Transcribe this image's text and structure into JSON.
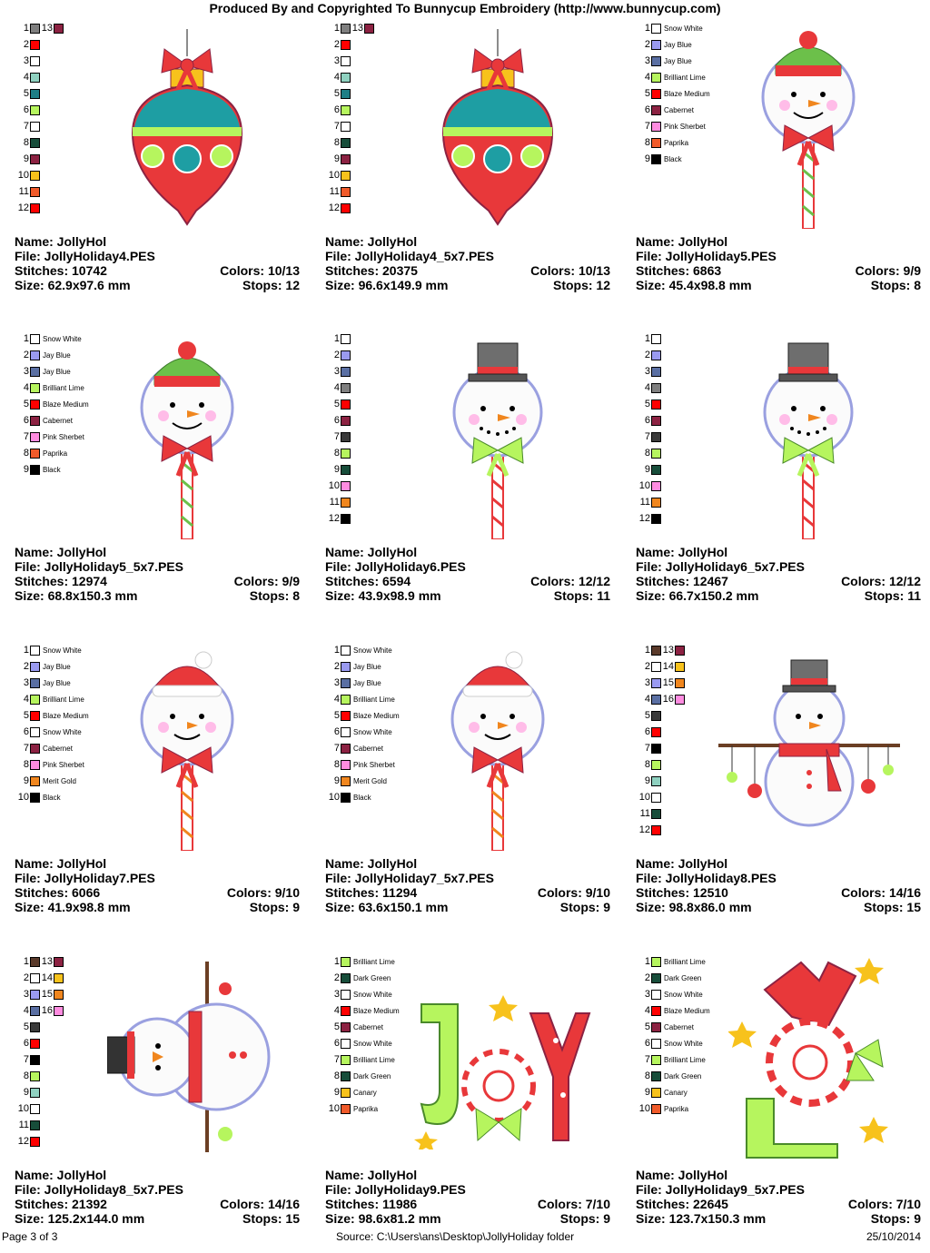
{
  "header": {
    "title": "Produced By and Copyrighted To Bunnycup Embroidery (http://www.bunnycup.com)"
  },
  "labels": {
    "name": "Name:",
    "file": "File:",
    "stitches": "Stitches:",
    "size": "Size:",
    "colors": "Colors:",
    "stops": "Stops:"
  },
  "designs": [
    {
      "name": "JollyHol",
      "file": "JollyHoliday4.PES",
      "stitches": "10742",
      "size": "62.9x97.6 mm",
      "colors": "10/13",
      "stops": "12",
      "motif": "ornament-icon",
      "swatches": [
        {
          "n": "1",
          "color": "#7f7f7f",
          "label": ""
        },
        {
          "n": "2",
          "color": "#ff0000",
          "label": ""
        },
        {
          "n": "3",
          "color": "#ffffff",
          "label": ""
        },
        {
          "n": "4",
          "color": "#8fd1c0",
          "label": ""
        },
        {
          "n": "5",
          "color": "#1e7f86",
          "label": ""
        },
        {
          "n": "6",
          "color": "#b6f55e",
          "label": ""
        },
        {
          "n": "7",
          "color": "#ffffff",
          "label": ""
        },
        {
          "n": "8",
          "color": "#174d3a",
          "label": ""
        },
        {
          "n": "9",
          "color": "#8c2242",
          "label": ""
        },
        {
          "n": "10",
          "color": "#f7c21c",
          "label": ""
        },
        {
          "n": "11",
          "color": "#f05a2a",
          "label": ""
        },
        {
          "n": "12",
          "color": "#ff0000",
          "label": ""
        },
        {
          "n": "13",
          "color": "#8c2242",
          "label": ""
        }
      ]
    },
    {
      "name": "JollyHol",
      "file": "JollyHoliday4_5x7.PES",
      "stitches": "20375",
      "size": "96.6x149.9 mm",
      "colors": "10/13",
      "stops": "12",
      "motif": "ornament-icon",
      "swatches": [
        {
          "n": "1",
          "color": "#7f7f7f",
          "label": ""
        },
        {
          "n": "2",
          "color": "#ff0000",
          "label": ""
        },
        {
          "n": "3",
          "color": "#ffffff",
          "label": ""
        },
        {
          "n": "4",
          "color": "#8fd1c0",
          "label": ""
        },
        {
          "n": "5",
          "color": "#1e7f86",
          "label": ""
        },
        {
          "n": "6",
          "color": "#b6f55e",
          "label": ""
        },
        {
          "n": "7",
          "color": "#ffffff",
          "label": ""
        },
        {
          "n": "8",
          "color": "#174d3a",
          "label": ""
        },
        {
          "n": "9",
          "color": "#8c2242",
          "label": ""
        },
        {
          "n": "10",
          "color": "#f7c21c",
          "label": ""
        },
        {
          "n": "11",
          "color": "#f05a2a",
          "label": ""
        },
        {
          "n": "12",
          "color": "#ff0000",
          "label": ""
        },
        {
          "n": "13",
          "color": "#8c2242",
          "label": ""
        }
      ]
    },
    {
      "name": "JollyHol",
      "file": "JollyHoliday5.PES",
      "stitches": "6863",
      "size": "45.4x98.8 mm",
      "colors": "9/9",
      "stops": "8",
      "motif": "snowman-pop-beanie-icon",
      "swatches": [
        {
          "n": "1",
          "color": "#ffffff",
          "label": "Snow White"
        },
        {
          "n": "2",
          "color": "#9a9af0",
          "label": "Jay Blue"
        },
        {
          "n": "3",
          "color": "#5a6fa3",
          "label": "Jay Blue"
        },
        {
          "n": "4",
          "color": "#b6f55e",
          "label": "Brilliant Lime"
        },
        {
          "n": "5",
          "color": "#ff0000",
          "label": "Blaze Medium"
        },
        {
          "n": "6",
          "color": "#8c2242",
          "label": "Cabernet"
        },
        {
          "n": "7",
          "color": "#ff8ce0",
          "label": "Pink Sherbet"
        },
        {
          "n": "8",
          "color": "#f05a2a",
          "label": "Paprika"
        },
        {
          "n": "9",
          "color": "#000000",
          "label": "Black"
        }
      ]
    },
    {
      "name": "JollyHol",
      "file": "JollyHoliday5_5x7.PES",
      "stitches": "12974",
      "size": "68.8x150.3 mm",
      "colors": "9/9",
      "stops": "8",
      "motif": "snowman-pop-beanie-icon",
      "swatches": [
        {
          "n": "1",
          "color": "#ffffff",
          "label": "Snow White"
        },
        {
          "n": "2",
          "color": "#9a9af0",
          "label": "Jay Blue"
        },
        {
          "n": "3",
          "color": "#5a6fa3",
          "label": "Jay Blue"
        },
        {
          "n": "4",
          "color": "#b6f55e",
          "label": "Brilliant Lime"
        },
        {
          "n": "5",
          "color": "#ff0000",
          "label": "Blaze Medium"
        },
        {
          "n": "6",
          "color": "#8c2242",
          "label": "Cabernet"
        },
        {
          "n": "7",
          "color": "#ff8ce0",
          "label": "Pink Sherbet"
        },
        {
          "n": "8",
          "color": "#f05a2a",
          "label": "Paprika"
        },
        {
          "n": "9",
          "color": "#000000",
          "label": "Black"
        }
      ]
    },
    {
      "name": "JollyHol",
      "file": "JollyHoliday6.PES",
      "stitches": "6594",
      "size": "43.9x98.9 mm",
      "colors": "12/12",
      "stops": "11",
      "motif": "snowman-pop-tophat-icon",
      "swatches": [
        {
          "n": "1",
          "color": "#ffffff",
          "label": ""
        },
        {
          "n": "2",
          "color": "#9a9af0",
          "label": ""
        },
        {
          "n": "3",
          "color": "#5a6fa3",
          "label": ""
        },
        {
          "n": "4",
          "color": "#7f7f7f",
          "label": ""
        },
        {
          "n": "5",
          "color": "#ff0000",
          "label": ""
        },
        {
          "n": "6",
          "color": "#8c2242",
          "label": ""
        },
        {
          "n": "7",
          "color": "#3a3a3a",
          "label": ""
        },
        {
          "n": "8",
          "color": "#b6f55e",
          "label": ""
        },
        {
          "n": "9",
          "color": "#174d3a",
          "label": ""
        },
        {
          "n": "10",
          "color": "#ff8ce0",
          "label": ""
        },
        {
          "n": "11",
          "color": "#f0861e",
          "label": ""
        },
        {
          "n": "12",
          "color": "#000000",
          "label": ""
        }
      ]
    },
    {
      "name": "JollyHol",
      "file": "JollyHoliday6_5x7.PES",
      "stitches": "12467",
      "size": "66.7x150.2 mm",
      "colors": "12/12",
      "stops": "11",
      "motif": "snowman-pop-tophat-icon",
      "swatches": [
        {
          "n": "1",
          "color": "#ffffff",
          "label": ""
        },
        {
          "n": "2",
          "color": "#9a9af0",
          "label": ""
        },
        {
          "n": "3",
          "color": "#5a6fa3",
          "label": ""
        },
        {
          "n": "4",
          "color": "#7f7f7f",
          "label": ""
        },
        {
          "n": "5",
          "color": "#ff0000",
          "label": ""
        },
        {
          "n": "6",
          "color": "#8c2242",
          "label": ""
        },
        {
          "n": "7",
          "color": "#3a3a3a",
          "label": ""
        },
        {
          "n": "8",
          "color": "#b6f55e",
          "label": ""
        },
        {
          "n": "9",
          "color": "#174d3a",
          "label": ""
        },
        {
          "n": "10",
          "color": "#ff8ce0",
          "label": ""
        },
        {
          "n": "11",
          "color": "#f0861e",
          "label": ""
        },
        {
          "n": "12",
          "color": "#000000",
          "label": ""
        }
      ]
    },
    {
      "name": "JollyHol",
      "file": "JollyHoliday7.PES",
      "stitches": "6066",
      "size": "41.9x98.8 mm",
      "colors": "9/10",
      "stops": "9",
      "motif": "snowman-pop-santa-hat-icon",
      "swatches": [
        {
          "n": "1",
          "color": "#ffffff",
          "label": "Snow White"
        },
        {
          "n": "2",
          "color": "#9a9af0",
          "label": "Jay Blue"
        },
        {
          "n": "3",
          "color": "#5a6fa3",
          "label": "Jay Blue"
        },
        {
          "n": "4",
          "color": "#b6f55e",
          "label": "Brilliant Lime"
        },
        {
          "n": "5",
          "color": "#ff0000",
          "label": "Blaze Medium"
        },
        {
          "n": "6",
          "color": "#ffffff",
          "label": "Snow White"
        },
        {
          "n": "7",
          "color": "#8c2242",
          "label": "Cabernet"
        },
        {
          "n": "8",
          "color": "#ff8ce0",
          "label": "Pink Sherbet"
        },
        {
          "n": "9",
          "color": "#f0861e",
          "label": "Merit Gold"
        },
        {
          "n": "10",
          "color": "#000000",
          "label": "Black"
        }
      ]
    },
    {
      "name": "JollyHol",
      "file": "JollyHoliday7_5x7.PES",
      "stitches": "11294",
      "size": "63.6x150.1 mm",
      "colors": "9/10",
      "stops": "9",
      "motif": "snowman-pop-santa-hat-icon",
      "swatches": [
        {
          "n": "1",
          "color": "#ffffff",
          "label": "Snow White"
        },
        {
          "n": "2",
          "color": "#9a9af0",
          "label": "Jay Blue"
        },
        {
          "n": "3",
          "color": "#5a6fa3",
          "label": "Jay Blue"
        },
        {
          "n": "4",
          "color": "#b6f55e",
          "label": "Brilliant Lime"
        },
        {
          "n": "5",
          "color": "#ff0000",
          "label": "Blaze Medium"
        },
        {
          "n": "6",
          "color": "#ffffff",
          "label": "Snow White"
        },
        {
          "n": "7",
          "color": "#8c2242",
          "label": "Cabernet"
        },
        {
          "n": "8",
          "color": "#ff8ce0",
          "label": "Pink Sherbet"
        },
        {
          "n": "9",
          "color": "#f0861e",
          "label": "Merit Gold"
        },
        {
          "n": "10",
          "color": "#000000",
          "label": "Black"
        }
      ]
    },
    {
      "name": "JollyHol",
      "file": "JollyHoliday8.PES",
      "stitches": "12510",
      "size": "98.8x86.0 mm",
      "colors": "14/16",
      "stops": "15",
      "motif": "snowman-branch-icon",
      "swatches": [
        {
          "n": "1",
          "color": "#5a3a2a",
          "label": ""
        },
        {
          "n": "2",
          "color": "#ffffff",
          "label": ""
        },
        {
          "n": "3",
          "color": "#9a9af0",
          "label": ""
        },
        {
          "n": "4",
          "color": "#5a6fa3",
          "label": ""
        },
        {
          "n": "5",
          "color": "#3a3a3a",
          "label": ""
        },
        {
          "n": "6",
          "color": "#ff0000",
          "label": ""
        },
        {
          "n": "7",
          "color": "#000000",
          "label": ""
        },
        {
          "n": "8",
          "color": "#b6f55e",
          "label": ""
        },
        {
          "n": "9",
          "color": "#8fd1c0",
          "label": ""
        },
        {
          "n": "10",
          "color": "#ffffff",
          "label": ""
        },
        {
          "n": "11",
          "color": "#174d3a",
          "label": ""
        },
        {
          "n": "12",
          "color": "#ff0000",
          "label": ""
        },
        {
          "n": "13",
          "color": "#8c2242",
          "label": ""
        },
        {
          "n": "14",
          "color": "#f7c21c",
          "label": ""
        },
        {
          "n": "15",
          "color": "#f0861e",
          "label": ""
        },
        {
          "n": "16",
          "color": "#ff8ce0",
          "label": ""
        }
      ]
    },
    {
      "name": "JollyHol",
      "file": "JollyHoliday8_5x7.PES",
      "stitches": "21392",
      "size": "125.2x144.0 mm",
      "colors": "14/16",
      "stops": "15",
      "motif": "snowman-sideways-icon",
      "swatches": [
        {
          "n": "1",
          "color": "#5a3a2a",
          "label": ""
        },
        {
          "n": "2",
          "color": "#ffffff",
          "label": ""
        },
        {
          "n": "3",
          "color": "#9a9af0",
          "label": ""
        },
        {
          "n": "4",
          "color": "#5a6fa3",
          "label": ""
        },
        {
          "n": "5",
          "color": "#3a3a3a",
          "label": ""
        },
        {
          "n": "6",
          "color": "#ff0000",
          "label": ""
        },
        {
          "n": "7",
          "color": "#000000",
          "label": ""
        },
        {
          "n": "8",
          "color": "#b6f55e",
          "label": ""
        },
        {
          "n": "9",
          "color": "#8fd1c0",
          "label": ""
        },
        {
          "n": "10",
          "color": "#ffffff",
          "label": ""
        },
        {
          "n": "11",
          "color": "#174d3a",
          "label": ""
        },
        {
          "n": "12",
          "color": "#ff0000",
          "label": ""
        },
        {
          "n": "13",
          "color": "#8c2242",
          "label": ""
        },
        {
          "n": "14",
          "color": "#f7c21c",
          "label": ""
        },
        {
          "n": "15",
          "color": "#f0861e",
          "label": ""
        },
        {
          "n": "16",
          "color": "#ff8ce0",
          "label": ""
        }
      ]
    },
    {
      "name": "JollyHol",
      "file": "JollyHoliday9.PES",
      "stitches": "11986",
      "size": "98.6x81.2 mm",
      "colors": "7/10",
      "stops": "9",
      "motif": "joy-letters-icon",
      "swatches": [
        {
          "n": "1",
          "color": "#b6f55e",
          "label": "Brilliant Lime"
        },
        {
          "n": "2",
          "color": "#174d3a",
          "label": "Dark Green"
        },
        {
          "n": "3",
          "color": "#ffffff",
          "label": "Snow White"
        },
        {
          "n": "4",
          "color": "#ff0000",
          "label": "Blaze Medium"
        },
        {
          "n": "5",
          "color": "#8c2242",
          "label": "Cabernet"
        },
        {
          "n": "6",
          "color": "#ffffff",
          "label": "Snow White"
        },
        {
          "n": "7",
          "color": "#b6f55e",
          "label": "Brilliant Lime"
        },
        {
          "n": "8",
          "color": "#174d3a",
          "label": "Dark Green"
        },
        {
          "n": "9",
          "color": "#f7c21c",
          "label": "Canary"
        },
        {
          "n": "10",
          "color": "#f05a2a",
          "label": "Paprika"
        }
      ]
    },
    {
      "name": "JollyHol",
      "file": "JollyHoliday9_5x7.PES",
      "stitches": "22645",
      "size": "123.7x150.3 mm",
      "colors": "7/10",
      "stops": "9",
      "motif": "joy-letters-rotated-icon",
      "swatches": [
        {
          "n": "1",
          "color": "#b6f55e",
          "label": "Brilliant Lime"
        },
        {
          "n": "2",
          "color": "#174d3a",
          "label": "Dark Green"
        },
        {
          "n": "3",
          "color": "#ffffff",
          "label": "Snow White"
        },
        {
          "n": "4",
          "color": "#ff0000",
          "label": "Blaze Medium"
        },
        {
          "n": "5",
          "color": "#8c2242",
          "label": "Cabernet"
        },
        {
          "n": "6",
          "color": "#ffffff",
          "label": "Snow White"
        },
        {
          "n": "7",
          "color": "#b6f55e",
          "label": "Brilliant Lime"
        },
        {
          "n": "8",
          "color": "#174d3a",
          "label": "Dark Green"
        },
        {
          "n": "9",
          "color": "#f7c21c",
          "label": "Canary"
        },
        {
          "n": "10",
          "color": "#f05a2a",
          "label": "Paprika"
        }
      ]
    }
  ],
  "footer": {
    "page": "Page 3 of 3",
    "source": "Source: C:\\Users\\ans\\Desktop\\JollyHoliday folder",
    "date": "25/10/2014"
  }
}
